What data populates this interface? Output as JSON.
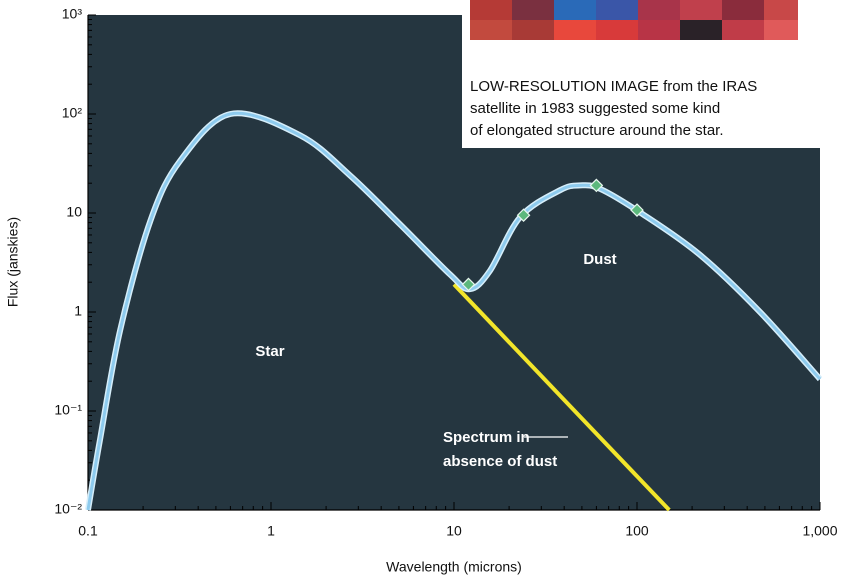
{
  "chart_data": {
    "type": "line",
    "x_label": "Wavelength (microns)",
    "y_label": "Flux (janskies)",
    "xscale": "log",
    "yscale": "log",
    "xlim": [
      0.1,
      1000
    ],
    "ylim": [
      0.01,
      1000
    ],
    "xticks": [
      0.1,
      1,
      10,
      100,
      {
        "value": 1000,
        "label": "1,000"
      }
    ],
    "yticks": [
      {
        "value": 0.01,
        "label": "10⁻²"
      },
      {
        "value": 0.1,
        "label": "10⁻¹"
      },
      1,
      10,
      {
        "value": 100,
        "label": "10²"
      },
      {
        "value": 1000,
        "label": "10³"
      }
    ],
    "series": [
      {
        "color": "#8ecbee",
        "x": [
          0.1,
          0.116,
          0.15,
          0.22,
          0.32,
          0.6,
          1.44,
          2.7,
          5.1,
          9.5,
          12.2,
          15.7,
          23,
          38,
          49,
          63,
          105,
          220,
          470,
          1000
        ],
        "values": [
          0.01,
          0.05,
          0.66,
          8.5,
          34,
          100,
          61,
          24,
          7.6,
          2.4,
          1.7,
          2.6,
          9.1,
          17,
          19,
          17.5,
          10,
          3.8,
          1.0,
          0.21
        ]
      },
      {
        "color": "#f2e52a",
        "x": [
          10,
          150
        ],
        "values": [
          1.9,
          0.01
        ]
      }
    ],
    "points": {
      "color": "#5cb87c",
      "x": [
        12,
        24,
        60,
        100
      ],
      "values": [
        1.9,
        9.5,
        19,
        10.7
      ]
    },
    "labels": {
      "star": "Star",
      "dust": "Dust",
      "spectrum": [
        "Spectrum in",
        "absence of dust"
      ]
    },
    "caption_lines": [
      "LOW-RESOLUTION IMAGE from the IRAS",
      "satellite in 1983 suggested some kind",
      "of elongated structure around the star."
    ]
  }
}
